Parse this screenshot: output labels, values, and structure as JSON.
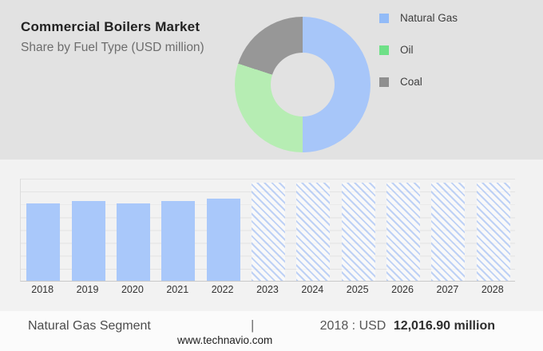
{
  "header": {
    "title": "Commercial Boilers Market",
    "subtitle": "Share by Fuel Type (USD million)"
  },
  "footer": {
    "segment_label": "Natural Gas Segment",
    "separator": "|",
    "value_prefix": "2018 : USD",
    "value_bold": "12,016.90 million",
    "website": "www.technavio.com"
  },
  "colors": {
    "header_background": "#e2e2e2",
    "chart_background": "#f2f2f2",
    "bar_fill": "#a9c8fa",
    "hatch_stripe": "rgba(150,182,243,0.6)"
  },
  "chart_data": [
    {
      "type": "pie",
      "donut": true,
      "title": "Commercial Boilers Market",
      "subtitle": "Share by Fuel Type (USD million)",
      "legend_position": "right",
      "slices": [
        {
          "label": "Natural Gas",
          "share_pct": 50,
          "color": "#a7c6f9",
          "legend_color": "#92bbf7"
        },
        {
          "label": "Oil",
          "share_pct": 30,
          "color": "#b6edb3",
          "legend_color": "#6ee087"
        },
        {
          "label": "Coal",
          "share_pct": 20,
          "color": "#979797",
          "legend_color": "#8f8f8f"
        }
      ],
      "shares_estimated_from_angles": true
    },
    {
      "type": "bar",
      "categories": [
        "2018",
        "2019",
        "2020",
        "2021",
        "2022",
        "2023",
        "2024",
        "2025",
        "2026",
        "2027",
        "2028"
      ],
      "series": [
        {
          "name": "Natural Gas segment (USD million)",
          "values": [
            12016.9,
            12350,
            12050,
            12450,
            12750,
            null,
            null,
            null,
            null,
            null,
            null
          ]
        }
      ],
      "forecast_years": [
        "2023",
        "2024",
        "2025",
        "2026",
        "2027",
        "2028"
      ],
      "labeled_value": {
        "year": "2018",
        "text": "USD 12,016.90 million"
      },
      "values_estimated_except_2018": true,
      "xlabel": "",
      "ylabel": "",
      "axis_max": 16000,
      "gridline_intervals": 8,
      "y_tick_labels_shown": false,
      "legend_position": "none"
    }
  ]
}
